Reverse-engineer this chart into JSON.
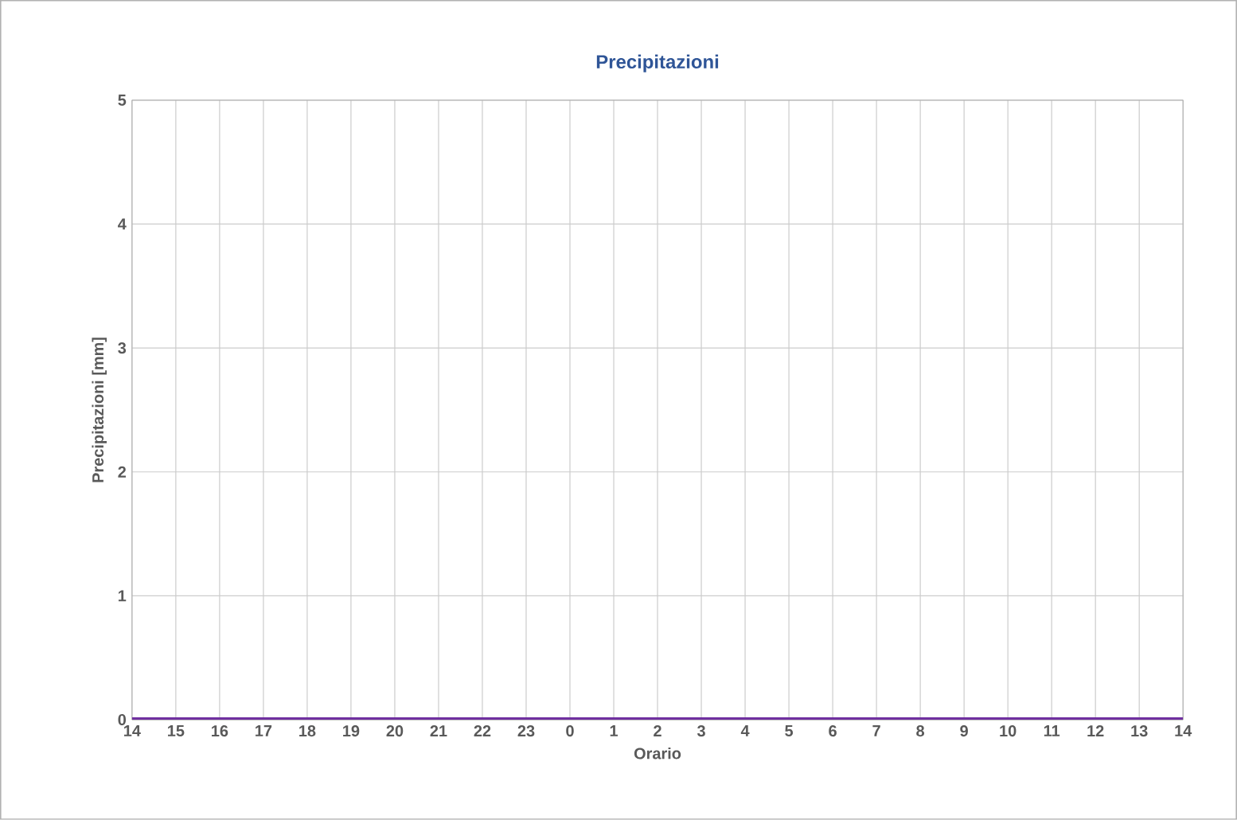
{
  "chart_data": {
    "type": "line",
    "title": "Precipitazioni",
    "xlabel": "Orario",
    "ylabel": "Precipitazioni  [mm]",
    "categories": [
      "14",
      "15",
      "16",
      "17",
      "18",
      "19",
      "20",
      "21",
      "22",
      "23",
      "0",
      "1",
      "2",
      "3",
      "4",
      "5",
      "6",
      "7",
      "8",
      "9",
      "10",
      "11",
      "12",
      "13",
      "14"
    ],
    "series": [
      {
        "color": "#7030a0",
        "values": [
          0,
          0,
          0,
          0,
          0,
          0,
          0,
          0,
          0,
          0,
          0,
          0,
          0,
          0,
          0,
          0,
          0,
          0,
          0,
          0,
          0,
          0,
          0,
          0,
          0
        ]
      }
    ],
    "ylim": [
      0,
      5
    ],
    "yticks": [
      0,
      1,
      2,
      3,
      4,
      5
    ],
    "grid": true,
    "marker": "none",
    "line_style": "solid"
  }
}
